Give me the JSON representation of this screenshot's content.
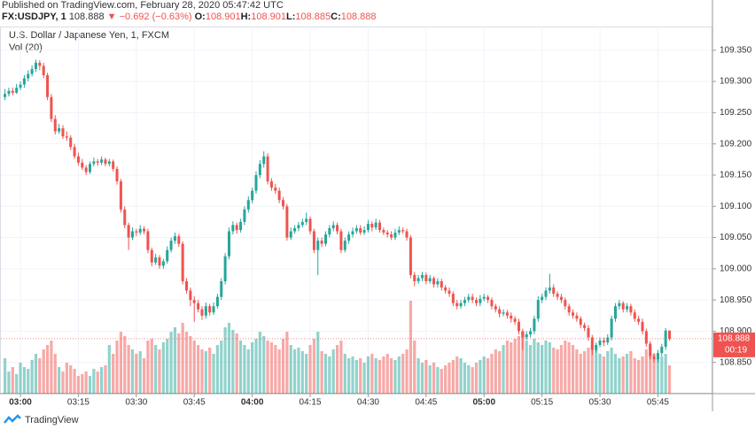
{
  "header": {
    "published": "Published on TradingView.com, February 28, 2020 05:47:42 UTC",
    "symbol": "FX:USDJPY, 1",
    "price": "108.888",
    "arrow": "▼",
    "change": "−0.692 (−0.63%)",
    "ohlc": [
      {
        "key": "O:",
        "value": "108.901"
      },
      {
        "key": "H:",
        "value": "108.901"
      },
      {
        "key": "L:",
        "value": "108.885"
      },
      {
        "key": "C:",
        "value": "108.888"
      }
    ]
  },
  "footer": {
    "brand": "TradingView"
  },
  "chart_data": {
    "type": "candlestick",
    "title": "U.S. Dollar / Japanese Yen, 1, FXCM",
    "volume_label": "Vol (20)",
    "up_color": "#26a69a",
    "down_color": "#ef5350",
    "grid": true,
    "ylim": [
      108.8,
      109.388
    ],
    "yticks": [
      {
        "value": 108.85,
        "label": "108.850"
      },
      {
        "value": 108.9,
        "label": "108.900"
      },
      {
        "value": 108.95,
        "label": "108.950"
      },
      {
        "value": 109,
        "label": "109.000"
      },
      {
        "value": 109.05,
        "label": "109.050"
      },
      {
        "value": 109.1,
        "label": "109.100"
      },
      {
        "value": 109.15,
        "label": "109.150"
      },
      {
        "value": 109.2,
        "label": "109.200"
      },
      {
        "value": 109.25,
        "label": "109.250"
      },
      {
        "value": 109.3,
        "label": "109.300"
      },
      {
        "value": 109.35,
        "label": "109.350"
      }
    ],
    "last_price": 108.888,
    "countdown": "00:19",
    "categories": [
      null,
      null,
      null,
      null,
      "03:00",
      null,
      null,
      null,
      null,
      null,
      null,
      null,
      null,
      null,
      null,
      null,
      null,
      null,
      null,
      "03:15",
      null,
      null,
      null,
      null,
      null,
      null,
      null,
      null,
      null,
      null,
      null,
      null,
      null,
      null,
      "03:30",
      null,
      null,
      null,
      null,
      null,
      null,
      null,
      null,
      null,
      null,
      null,
      null,
      null,
      null,
      "03:45",
      null,
      null,
      null,
      null,
      null,
      null,
      null,
      null,
      null,
      null,
      null,
      null,
      null,
      null,
      "04:00",
      null,
      null,
      null,
      null,
      null,
      null,
      null,
      null,
      null,
      null,
      null,
      null,
      null,
      null,
      "04:15",
      null,
      null,
      null,
      null,
      null,
      null,
      null,
      null,
      null,
      null,
      null,
      null,
      null,
      null,
      "04:30",
      null,
      null,
      null,
      null,
      null,
      null,
      null,
      null,
      null,
      null,
      null,
      null,
      null,
      null,
      "04:45",
      null,
      null,
      null,
      null,
      null,
      null,
      null,
      null,
      null,
      null,
      null,
      null,
      null,
      null,
      "05:00",
      null,
      null,
      null,
      null,
      null,
      null,
      null,
      null,
      null,
      null,
      null,
      null,
      null,
      null,
      "05:15",
      null,
      null,
      null,
      null,
      null,
      null,
      null,
      null,
      null,
      null,
      null,
      null,
      null,
      null,
      "05:30",
      null,
      null,
      null,
      null,
      null,
      null,
      null,
      null,
      null,
      null,
      null,
      null,
      null,
      null,
      "05:45",
      null,
      null,
      null
    ],
    "candles": [
      [
        109.275,
        109.288,
        109.27,
        109.28
      ],
      [
        109.28,
        109.29,
        109.276,
        109.285
      ],
      [
        109.285,
        109.29,
        109.278,
        109.282
      ],
      [
        109.282,
        109.296,
        109.28,
        109.29
      ],
      [
        109.29,
        109.3,
        109.286,
        109.295
      ],
      [
        109.295,
        109.31,
        109.29,
        109.305
      ],
      [
        109.305,
        109.318,
        109.3,
        109.312
      ],
      [
        109.312,
        109.326,
        109.308,
        109.32
      ],
      [
        109.32,
        109.335,
        109.315,
        109.33
      ],
      [
        109.33,
        109.334,
        109.318,
        109.325
      ],
      [
        109.325,
        109.33,
        109.305,
        109.31
      ],
      [
        109.31,
        109.314,
        109.27,
        109.275
      ],
      [
        109.275,
        109.28,
        109.235,
        109.24
      ],
      [
        109.24,
        109.246,
        109.215,
        109.22
      ],
      [
        109.22,
        109.232,
        109.216,
        109.225
      ],
      [
        109.225,
        109.23,
        109.208,
        109.212
      ],
      [
        109.212,
        109.22,
        109.205,
        109.21
      ],
      [
        109.21,
        109.214,
        109.19,
        109.195
      ],
      [
        109.195,
        109.2,
        109.176,
        109.18
      ],
      [
        109.18,
        109.186,
        109.165,
        109.17
      ],
      [
        109.17,
        109.176,
        109.158,
        109.162
      ],
      [
        109.162,
        109.166,
        109.15,
        109.155
      ],
      [
        109.155,
        109.172,
        109.152,
        109.168
      ],
      [
        109.168,
        109.178,
        109.164,
        109.172
      ],
      [
        109.172,
        109.176,
        109.165,
        109.17
      ],
      [
        109.17,
        109.18,
        109.166,
        109.175
      ],
      [
        109.175,
        109.178,
        109.164,
        109.168
      ],
      [
        109.168,
        109.176,
        109.164,
        109.172
      ],
      [
        109.172,
        109.175,
        109.156,
        109.16
      ],
      [
        109.16,
        109.164,
        109.135,
        109.14
      ],
      [
        109.14,
        109.144,
        109.09,
        109.095
      ],
      [
        109.095,
        109.1,
        109.065,
        109.07
      ],
      [
        109.07,
        109.074,
        109.03,
        109.05
      ],
      [
        109.05,
        109.066,
        109.046,
        109.06
      ],
      [
        109.06,
        109.064,
        109.052,
        109.058
      ],
      [
        109.058,
        109.07,
        109.054,
        109.064
      ],
      [
        109.064,
        109.068,
        109.055,
        109.06
      ],
      [
        109.06,
        109.064,
        109.025,
        109.03
      ],
      [
        109.03,
        109.034,
        109.004,
        109.01
      ],
      [
        109.01,
        109.024,
        109.006,
        109.018
      ],
      [
        109.018,
        109.022,
        109,
        109.005
      ],
      [
        109.005,
        109.016,
        109,
        109.012
      ],
      [
        109.012,
        109.036,
        109.008,
        109.03
      ],
      [
        109.03,
        109.05,
        109.026,
        109.045
      ],
      [
        109.045,
        109.058,
        109.04,
        109.052
      ],
      [
        109.052,
        109.056,
        109.035,
        109.04
      ],
      [
        109.04,
        109.044,
        108.975,
        108.98
      ],
      [
        108.98,
        108.985,
        108.96,
        108.965
      ],
      [
        108.965,
        108.97,
        108.94,
        108.95
      ],
      [
        108.95,
        108.956,
        108.915,
        108.945
      ],
      [
        108.945,
        108.95,
        108.93,
        108.935
      ],
      [
        108.935,
        108.94,
        108.918,
        108.925
      ],
      [
        108.925,
        108.946,
        108.92,
        108.94
      ],
      [
        108.94,
        108.944,
        108.925,
        108.93
      ],
      [
        108.93,
        108.946,
        108.926,
        108.94
      ],
      [
        108.94,
        108.96,
        108.936,
        108.955
      ],
      [
        108.955,
        108.985,
        108.95,
        108.98
      ],
      [
        108.98,
        109.025,
        108.975,
        109.02
      ],
      [
        109.02,
        109.066,
        109.015,
        109.06
      ],
      [
        109.06,
        109.076,
        109.055,
        109.07
      ],
      [
        109.07,
        109.074,
        109.056,
        109.062
      ],
      [
        109.062,
        109.08,
        109.058,
        109.075
      ],
      [
        109.075,
        109.1,
        109.07,
        109.095
      ],
      [
        109.095,
        109.116,
        109.09,
        109.11
      ],
      [
        109.11,
        109.13,
        109.105,
        109.125
      ],
      [
        109.125,
        109.156,
        109.12,
        109.15
      ],
      [
        109.15,
        109.174,
        109.145,
        109.168
      ],
      [
        109.168,
        109.188,
        109.162,
        109.18
      ],
      [
        109.18,
        109.185,
        109.135,
        109.14
      ],
      [
        109.14,
        109.145,
        109.125,
        109.13
      ],
      [
        109.13,
        109.136,
        109.12,
        109.125
      ],
      [
        109.125,
        109.13,
        109.105,
        109.11
      ],
      [
        109.11,
        109.115,
        109.095,
        109.1
      ],
      [
        109.1,
        109.104,
        109.045,
        109.05
      ],
      [
        109.05,
        109.066,
        109.046,
        109.06
      ],
      [
        109.06,
        109.07,
        109.056,
        109.065
      ],
      [
        109.065,
        109.075,
        109.06,
        109.07
      ],
      [
        109.07,
        109.08,
        109.066,
        109.075
      ],
      [
        109.075,
        109.09,
        109.07,
        109.08
      ],
      [
        109.08,
        109.084,
        109.055,
        109.06
      ],
      [
        109.06,
        109.064,
        109.025,
        109.03
      ],
      [
        109.03,
        109.05,
        108.99,
        109.045
      ],
      [
        109.045,
        109.05,
        109.035,
        109.04
      ],
      [
        109.04,
        109.06,
        109.036,
        109.055
      ],
      [
        109.055,
        109.07,
        109.05,
        109.065
      ],
      [
        109.065,
        109.076,
        109.06,
        109.07
      ],
      [
        109.07,
        109.074,
        109.055,
        109.06
      ],
      [
        109.06,
        109.064,
        109.025,
        109.03
      ],
      [
        109.03,
        109.05,
        109.026,
        109.045
      ],
      [
        109.045,
        109.06,
        109.04,
        109.055
      ],
      [
        109.055,
        109.066,
        109.05,
        109.06
      ],
      [
        109.06,
        109.07,
        109.056,
        109.065
      ],
      [
        109.065,
        109.07,
        109.054,
        109.058
      ],
      [
        109.058,
        109.068,
        109.054,
        109.062
      ],
      [
        109.062,
        109.078,
        109.058,
        109.072
      ],
      [
        109.072,
        109.076,
        109.06,
        109.066
      ],
      [
        109.066,
        109.08,
        109.062,
        109.074
      ],
      [
        109.074,
        109.078,
        109.058,
        109.062
      ],
      [
        109.062,
        109.066,
        109.054,
        109.058
      ],
      [
        109.058,
        109.062,
        109.05,
        109.055
      ],
      [
        109.055,
        109.06,
        109.046,
        109.05
      ],
      [
        109.05,
        109.064,
        109.046,
        109.058
      ],
      [
        109.058,
        109.068,
        109.054,
        109.062
      ],
      [
        109.062,
        109.066,
        109.056,
        109.06
      ],
      [
        109.06,
        109.064,
        109.045,
        109.05
      ],
      [
        109.05,
        109.054,
        108.985,
        108.99
      ],
      [
        108.99,
        108.995,
        108.972,
        108.98
      ],
      [
        108.98,
        108.99,
        108.976,
        108.985
      ],
      [
        108.985,
        108.995,
        108.98,
        108.99
      ],
      [
        108.99,
        108.994,
        108.975,
        108.98
      ],
      [
        108.98,
        108.99,
        108.976,
        108.985
      ],
      [
        108.985,
        108.988,
        108.97,
        108.975
      ],
      [
        108.975,
        108.985,
        108.97,
        108.98
      ],
      [
        108.98,
        108.984,
        108.965,
        108.97
      ],
      [
        108.97,
        108.974,
        108.96,
        108.965
      ],
      [
        108.965,
        108.97,
        108.955,
        108.96
      ],
      [
        108.96,
        108.964,
        108.94,
        108.945
      ],
      [
        108.945,
        108.95,
        108.935,
        108.94
      ],
      [
        108.94,
        108.95,
        108.936,
        108.945
      ],
      [
        108.945,
        108.955,
        108.94,
        108.95
      ],
      [
        108.95,
        108.96,
        108.946,
        108.955
      ],
      [
        108.955,
        108.96,
        108.945,
        108.95
      ],
      [
        108.95,
        108.954,
        108.94,
        108.945
      ],
      [
        108.945,
        108.958,
        108.94,
        108.952
      ],
      [
        108.952,
        108.96,
        108.948,
        108.955
      ],
      [
        108.955,
        108.958,
        108.945,
        108.95
      ],
      [
        108.95,
        108.954,
        108.935,
        108.94
      ],
      [
        108.94,
        108.944,
        108.93,
        108.935
      ],
      [
        108.935,
        108.94,
        108.922,
        108.928
      ],
      [
        108.928,
        108.935,
        108.924,
        108.93
      ],
      [
        108.93,
        108.934,
        108.92,
        108.925
      ],
      [
        108.925,
        108.93,
        108.914,
        108.92
      ],
      [
        108.92,
        108.924,
        108.91,
        108.915
      ],
      [
        108.915,
        108.92,
        108.895,
        108.9
      ],
      [
        108.9,
        108.904,
        108.87,
        108.89
      ],
      [
        108.89,
        108.9,
        108.886,
        108.895
      ],
      [
        108.895,
        108.905,
        108.89,
        108.9
      ],
      [
        108.9,
        108.925,
        108.895,
        108.92
      ],
      [
        108.92,
        108.956,
        108.915,
        108.95
      ],
      [
        108.95,
        108.96,
        108.945,
        108.955
      ],
      [
        108.955,
        108.97,
        108.95,
        108.965
      ],
      [
        108.965,
        108.992,
        108.96,
        108.97
      ],
      [
        108.97,
        108.975,
        108.955,
        108.96
      ],
      [
        108.96,
        108.964,
        108.95,
        108.955
      ],
      [
        108.955,
        108.96,
        108.945,
        108.95
      ],
      [
        108.95,
        108.954,
        108.935,
        108.94
      ],
      [
        108.94,
        108.944,
        108.925,
        108.93
      ],
      [
        108.93,
        108.935,
        108.92,
        108.925
      ],
      [
        108.925,
        108.93,
        108.915,
        108.92
      ],
      [
        108.92,
        108.924,
        108.905,
        108.91
      ],
      [
        108.91,
        108.914,
        108.9,
        108.905
      ],
      [
        108.905,
        108.91,
        108.885,
        108.89
      ],
      [
        108.89,
        108.894,
        108.862,
        108.87
      ],
      [
        108.87,
        108.882,
        108.866,
        108.878
      ],
      [
        108.878,
        108.89,
        108.874,
        108.885
      ],
      [
        108.885,
        108.89,
        108.876,
        108.882
      ],
      [
        108.882,
        108.895,
        108.878,
        108.89
      ],
      [
        108.89,
        108.925,
        108.885,
        108.92
      ],
      [
        108.92,
        108.945,
        108.915,
        108.94
      ],
      [
        108.94,
        108.95,
        108.935,
        108.945
      ],
      [
        108.945,
        108.948,
        108.93,
        108.935
      ],
      [
        108.935,
        108.945,
        108.93,
        108.94
      ],
      [
        108.94,
        108.944,
        108.925,
        108.93
      ],
      [
        108.93,
        108.935,
        108.915,
        108.92
      ],
      [
        108.92,
        108.925,
        108.91,
        108.915
      ],
      [
        108.915,
        108.92,
        108.895,
        108.9
      ],
      [
        108.9,
        108.904,
        108.875,
        108.88
      ],
      [
        108.88,
        108.884,
        108.855,
        108.86
      ],
      [
        108.86,
        108.865,
        108.85,
        108.855
      ],
      [
        108.855,
        108.87,
        108.85,
        108.865
      ],
      [
        108.865,
        108.88,
        108.86,
        108.875
      ],
      [
        108.875,
        108.905,
        108.87,
        108.901
      ],
      [
        108.901,
        108.901,
        108.885,
        108.888
      ]
    ],
    "volume": [
      40,
      25,
      30,
      22,
      35,
      30,
      28,
      38,
      45,
      40,
      50,
      55,
      60,
      45,
      30,
      25,
      35,
      32,
      28,
      20,
      22,
      25,
      20,
      28,
      25,
      30,
      32,
      55,
      45,
      60,
      70,
      65,
      55,
      50,
      45,
      48,
      40,
      60,
      62,
      55,
      50,
      58,
      62,
      70,
      75,
      68,
      80,
      70,
      65,
      60,
      55,
      50,
      48,
      52,
      45,
      55,
      60,
      75,
      80,
      72,
      68,
      60,
      55,
      50,
      58,
      62,
      70,
      65,
      60,
      58,
      55,
      50,
      62,
      70,
      55,
      50,
      52,
      48,
      45,
      55,
      62,
      70,
      48,
      45,
      42,
      50,
      55,
      60,
      45,
      40,
      42,
      38,
      40,
      35,
      42,
      45,
      40,
      38,
      42,
      45,
      40,
      38,
      42,
      45,
      50,
      105,
      60,
      40,
      35,
      38,
      32,
      35,
      30,
      28,
      32,
      35,
      38,
      42,
      40,
      35,
      32,
      30,
      35,
      38,
      42,
      40,
      45,
      50,
      48,
      55,
      60,
      58,
      62,
      65,
      70,
      60,
      55,
      62,
      58,
      55,
      60,
      58,
      52,
      50,
      55,
      60,
      58,
      55,
      50,
      45,
      48,
      52,
      55,
      50,
      45,
      42,
      48,
      52,
      45,
      40,
      42,
      45,
      48,
      40,
      38,
      42,
      50,
      55,
      45,
      40,
      42,
      45,
      32
    ]
  }
}
